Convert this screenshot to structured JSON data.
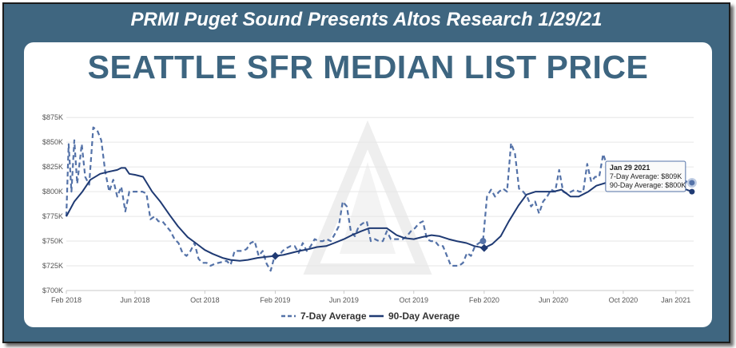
{
  "banner": "PRMI Puget Sound Presents Altos Research 1/29/21",
  "colors": {
    "frame": "#3f6680",
    "title": "#3d6580",
    "series_dark": "#1f3a73",
    "series_dashed": "#5472a8"
  },
  "chart_data": {
    "type": "line",
    "title": "SEATTLE SFR MEDIAN LIST PRICE",
    "xlabel": "",
    "ylabel": "",
    "x_domain": [
      "2018-02-01",
      "2021-02-01"
    ],
    "ylim": [
      700,
      880
    ],
    "y_ticks": [
      {
        "value": 700,
        "label": "$700K"
      },
      {
        "value": 725,
        "label": "$725K"
      },
      {
        "value": 750,
        "label": "$750K"
      },
      {
        "value": 775,
        "label": "$775K"
      },
      {
        "value": 800,
        "label": "$800K"
      },
      {
        "value": 825,
        "label": "$825K"
      },
      {
        "value": 850,
        "label": "$850K"
      },
      {
        "value": 875,
        "label": "$875K"
      }
    ],
    "x_ticks": [
      {
        "date": "2018-02-01",
        "label": "Feb 2018"
      },
      {
        "date": "2018-06-01",
        "label": "Jun 2018"
      },
      {
        "date": "2018-10-01",
        "label": "Oct 2018"
      },
      {
        "date": "2019-02-01",
        "label": "Feb 2019"
      },
      {
        "date": "2019-06-01",
        "label": "Jun 2019"
      },
      {
        "date": "2019-10-01",
        "label": "Oct 2019"
      },
      {
        "date": "2020-02-01",
        "label": "Feb 2020"
      },
      {
        "date": "2020-06-01",
        "label": "Jun 2020"
      },
      {
        "date": "2020-10-01",
        "label": "Oct 2020"
      },
      {
        "date": "2021-01-01",
        "label": "Jan 2021"
      }
    ],
    "grid": true,
    "legend_position": "bottom",
    "series": [
      {
        "name": "7-Day Average",
        "style": "dashed",
        "points": [
          [
            "2018-02-01",
            775
          ],
          [
            "2018-02-05",
            848
          ],
          [
            "2018-02-10",
            800
          ],
          [
            "2018-02-15",
            852
          ],
          [
            "2018-02-20",
            808
          ],
          [
            "2018-02-28",
            848
          ],
          [
            "2018-03-06",
            815
          ],
          [
            "2018-03-13",
            807
          ],
          [
            "2018-03-20",
            865
          ],
          [
            "2018-03-27",
            862
          ],
          [
            "2018-04-03",
            852
          ],
          [
            "2018-04-10",
            820
          ],
          [
            "2018-04-17",
            800
          ],
          [
            "2018-04-24",
            812
          ],
          [
            "2018-05-01",
            795
          ],
          [
            "2018-05-08",
            805
          ],
          [
            "2018-05-15",
            780
          ],
          [
            "2018-05-22",
            800
          ],
          [
            "2018-05-31",
            800
          ],
          [
            "2018-06-07",
            800
          ],
          [
            "2018-06-14",
            800
          ],
          [
            "2018-06-21",
            798
          ],
          [
            "2018-06-28",
            772
          ],
          [
            "2018-07-05",
            775
          ],
          [
            "2018-07-12",
            770
          ],
          [
            "2018-07-19",
            770
          ],
          [
            "2018-07-26",
            765
          ],
          [
            "2018-08-02",
            760
          ],
          [
            "2018-08-09",
            752
          ],
          [
            "2018-08-16",
            748
          ],
          [
            "2018-08-23",
            738
          ],
          [
            "2018-08-30",
            735
          ],
          [
            "2018-09-06",
            740
          ],
          [
            "2018-09-13",
            748
          ],
          [
            "2018-09-20",
            732
          ],
          [
            "2018-09-27",
            728
          ],
          [
            "2018-10-04",
            728
          ],
          [
            "2018-10-11",
            725
          ],
          [
            "2018-10-18",
            727
          ],
          [
            "2018-10-25",
            728
          ],
          [
            "2018-11-01",
            729
          ],
          [
            "2018-11-08",
            730
          ],
          [
            "2018-11-15",
            726
          ],
          [
            "2018-11-22",
            740
          ],
          [
            "2018-11-29",
            740
          ],
          [
            "2018-12-06",
            740
          ],
          [
            "2018-12-13",
            742
          ],
          [
            "2018-12-20",
            748
          ],
          [
            "2018-12-27",
            750
          ],
          [
            "2019-01-03",
            735
          ],
          [
            "2019-01-10",
            740
          ],
          [
            "2019-01-17",
            727
          ],
          [
            "2019-01-24",
            720
          ],
          [
            "2019-01-31",
            735
          ],
          [
            "2019-02-07",
            735
          ],
          [
            "2019-02-14",
            740
          ],
          [
            "2019-02-21",
            743
          ],
          [
            "2019-02-28",
            745
          ],
          [
            "2019-03-07",
            745
          ],
          [
            "2019-03-14",
            738
          ],
          [
            "2019-03-21",
            748
          ],
          [
            "2019-03-28",
            740
          ],
          [
            "2019-04-04",
            745
          ],
          [
            "2019-04-11",
            752
          ],
          [
            "2019-04-18",
            750
          ],
          [
            "2019-04-25",
            750
          ],
          [
            "2019-05-02",
            752
          ],
          [
            "2019-05-09",
            750
          ],
          [
            "2019-05-16",
            757
          ],
          [
            "2019-05-23",
            765
          ],
          [
            "2019-05-30",
            790
          ],
          [
            "2019-06-06",
            785
          ],
          [
            "2019-06-13",
            760
          ],
          [
            "2019-06-20",
            755
          ],
          [
            "2019-06-27",
            765
          ],
          [
            "2019-07-04",
            768
          ],
          [
            "2019-07-11",
            770
          ],
          [
            "2019-07-18",
            750
          ],
          [
            "2019-07-25",
            752
          ],
          [
            "2019-08-01",
            750
          ],
          [
            "2019-08-08",
            750
          ],
          [
            "2019-08-15",
            760
          ],
          [
            "2019-08-22",
            752
          ],
          [
            "2019-08-29",
            752
          ],
          [
            "2019-09-05",
            752
          ],
          [
            "2019-09-12",
            752
          ],
          [
            "2019-09-19",
            755
          ],
          [
            "2019-09-26",
            760
          ],
          [
            "2019-10-03",
            763
          ],
          [
            "2019-10-10",
            768
          ],
          [
            "2019-10-17",
            770
          ],
          [
            "2019-10-24",
            752
          ],
          [
            "2019-10-31",
            750
          ],
          [
            "2019-11-07",
            750
          ],
          [
            "2019-11-14",
            745
          ],
          [
            "2019-11-21",
            745
          ],
          [
            "2019-11-28",
            735
          ],
          [
            "2019-12-05",
            725
          ],
          [
            "2019-12-12",
            725
          ],
          [
            "2019-12-19",
            725
          ],
          [
            "2019-12-26",
            728
          ],
          [
            "2020-01-02",
            738
          ],
          [
            "2020-01-09",
            735
          ],
          [
            "2020-01-16",
            745
          ],
          [
            "2020-01-23",
            748
          ],
          [
            "2020-01-30",
            750
          ],
          [
            "2020-02-06",
            795
          ],
          [
            "2020-02-13",
            802
          ],
          [
            "2020-02-20",
            795
          ],
          [
            "2020-02-27",
            800
          ],
          [
            "2020-03-05",
            803
          ],
          [
            "2020-03-12",
            800
          ],
          [
            "2020-03-19",
            849
          ],
          [
            "2020-03-26",
            838
          ],
          [
            "2020-04-02",
            803
          ],
          [
            "2020-04-09",
            800
          ],
          [
            "2020-04-16",
            795
          ],
          [
            "2020-04-23",
            785
          ],
          [
            "2020-04-30",
            790
          ],
          [
            "2020-05-07",
            778
          ],
          [
            "2020-05-14",
            790
          ],
          [
            "2020-05-21",
            795
          ],
          [
            "2020-05-28",
            802
          ],
          [
            "2020-06-04",
            800
          ],
          [
            "2020-06-11",
            822
          ],
          [
            "2020-06-18",
            800
          ],
          [
            "2020-06-25",
            798
          ],
          [
            "2020-07-02",
            800
          ],
          [
            "2020-07-09",
            802
          ],
          [
            "2020-07-16",
            800
          ],
          [
            "2020-07-23",
            800
          ],
          [
            "2020-07-30",
            828
          ],
          [
            "2020-08-06",
            810
          ],
          [
            "2020-08-13",
            815
          ],
          [
            "2020-08-20",
            815
          ],
          [
            "2020-08-27",
            838
          ],
          [
            "2020-09-03",
            826
          ],
          [
            "2020-09-10",
            818
          ],
          [
            "2020-09-17",
            825
          ],
          [
            "2020-09-24",
            828
          ],
          [
            "2020-10-01",
            825
          ],
          [
            "2020-10-08",
            825
          ],
          [
            "2020-10-15",
            826
          ],
          [
            "2020-10-22",
            820
          ],
          [
            "2020-10-29",
            822
          ],
          [
            "2020-11-05",
            818
          ],
          [
            "2020-11-12",
            815
          ],
          [
            "2020-11-19",
            815
          ],
          [
            "2020-11-26",
            810
          ],
          [
            "2020-12-03",
            808
          ],
          [
            "2020-12-10",
            810
          ],
          [
            "2020-12-17",
            812
          ],
          [
            "2020-12-24",
            812
          ],
          [
            "2020-12-31",
            810
          ],
          [
            "2021-01-07",
            808
          ],
          [
            "2021-01-14",
            805
          ],
          [
            "2021-01-21",
            812
          ],
          [
            "2021-01-29",
            809
          ]
        ]
      },
      {
        "name": "90-Day Average",
        "style": "solid",
        "points": [
          [
            "2018-02-01",
            775
          ],
          [
            "2018-02-15",
            790
          ],
          [
            "2018-03-01",
            800
          ],
          [
            "2018-03-15",
            812
          ],
          [
            "2018-04-01",
            818
          ],
          [
            "2018-04-15",
            820
          ],
          [
            "2018-05-01",
            822
          ],
          [
            "2018-05-08",
            824
          ],
          [
            "2018-05-15",
            824
          ],
          [
            "2018-05-22",
            818
          ],
          [
            "2018-06-01",
            817
          ],
          [
            "2018-06-15",
            815
          ],
          [
            "2018-07-01",
            800
          ],
          [
            "2018-07-15",
            790
          ],
          [
            "2018-08-01",
            776
          ],
          [
            "2018-08-15",
            765
          ],
          [
            "2018-09-01",
            754
          ],
          [
            "2018-09-15",
            748
          ],
          [
            "2018-10-01",
            741
          ],
          [
            "2018-10-15",
            737
          ],
          [
            "2018-11-01",
            733
          ],
          [
            "2018-11-15",
            731
          ],
          [
            "2018-12-01",
            730
          ],
          [
            "2018-12-15",
            731
          ],
          [
            "2019-01-01",
            733
          ],
          [
            "2019-01-15",
            734
          ],
          [
            "2019-02-01",
            735
          ],
          [
            "2019-02-15",
            736
          ],
          [
            "2019-03-01",
            738
          ],
          [
            "2019-03-15",
            740
          ],
          [
            "2019-04-01",
            742
          ],
          [
            "2019-04-15",
            744
          ],
          [
            "2019-05-01",
            745
          ],
          [
            "2019-05-15",
            748
          ],
          [
            "2019-06-01",
            752
          ],
          [
            "2019-06-15",
            756
          ],
          [
            "2019-07-01",
            760
          ],
          [
            "2019-07-15",
            763
          ],
          [
            "2019-08-01",
            763
          ],
          [
            "2019-08-15",
            763
          ],
          [
            "2019-09-01",
            756
          ],
          [
            "2019-09-15",
            753
          ],
          [
            "2019-10-01",
            752
          ],
          [
            "2019-10-15",
            754
          ],
          [
            "2019-11-01",
            756
          ],
          [
            "2019-11-15",
            755
          ],
          [
            "2019-12-01",
            752
          ],
          [
            "2019-12-15",
            750
          ],
          [
            "2020-01-01",
            748
          ],
          [
            "2020-01-15",
            745
          ],
          [
            "2020-02-01",
            743
          ],
          [
            "2020-02-15",
            747
          ],
          [
            "2020-03-01",
            755
          ],
          [
            "2020-03-15",
            770
          ],
          [
            "2020-04-01",
            786
          ],
          [
            "2020-04-15",
            797
          ],
          [
            "2020-05-01",
            800
          ],
          [
            "2020-05-15",
            800
          ],
          [
            "2020-06-01",
            800
          ],
          [
            "2020-06-15",
            802
          ],
          [
            "2020-07-01",
            795
          ],
          [
            "2020-07-15",
            795
          ],
          [
            "2020-08-01",
            800
          ],
          [
            "2020-08-15",
            806
          ],
          [
            "2020-09-01",
            809
          ],
          [
            "2020-09-15",
            812
          ],
          [
            "2020-10-01",
            814
          ],
          [
            "2020-10-15",
            815
          ],
          [
            "2020-11-01",
            815
          ],
          [
            "2020-11-15",
            814
          ],
          [
            "2020-12-01",
            813
          ],
          [
            "2020-12-15",
            810
          ],
          [
            "2021-01-01",
            808
          ],
          [
            "2021-01-15",
            803
          ],
          [
            "2021-01-29",
            800
          ]
        ]
      }
    ],
    "annotations": [
      {
        "series": "90-Day Average",
        "date": "2019-02-01",
        "value": 735
      },
      {
        "series": "7-Day Average",
        "date": "2020-01-30",
        "value": 750
      },
      {
        "series": "90-Day Average",
        "date": "2020-02-01",
        "value": 743
      }
    ],
    "tooltip": {
      "date": "2021-01-29",
      "date_label": "Jan 29 2021",
      "line1": "7-Day Average: $809K",
      "line2": "90-Day Average: $800K"
    }
  },
  "legend": {
    "item1": "7-Day Average",
    "item2": "90-Day Average"
  }
}
